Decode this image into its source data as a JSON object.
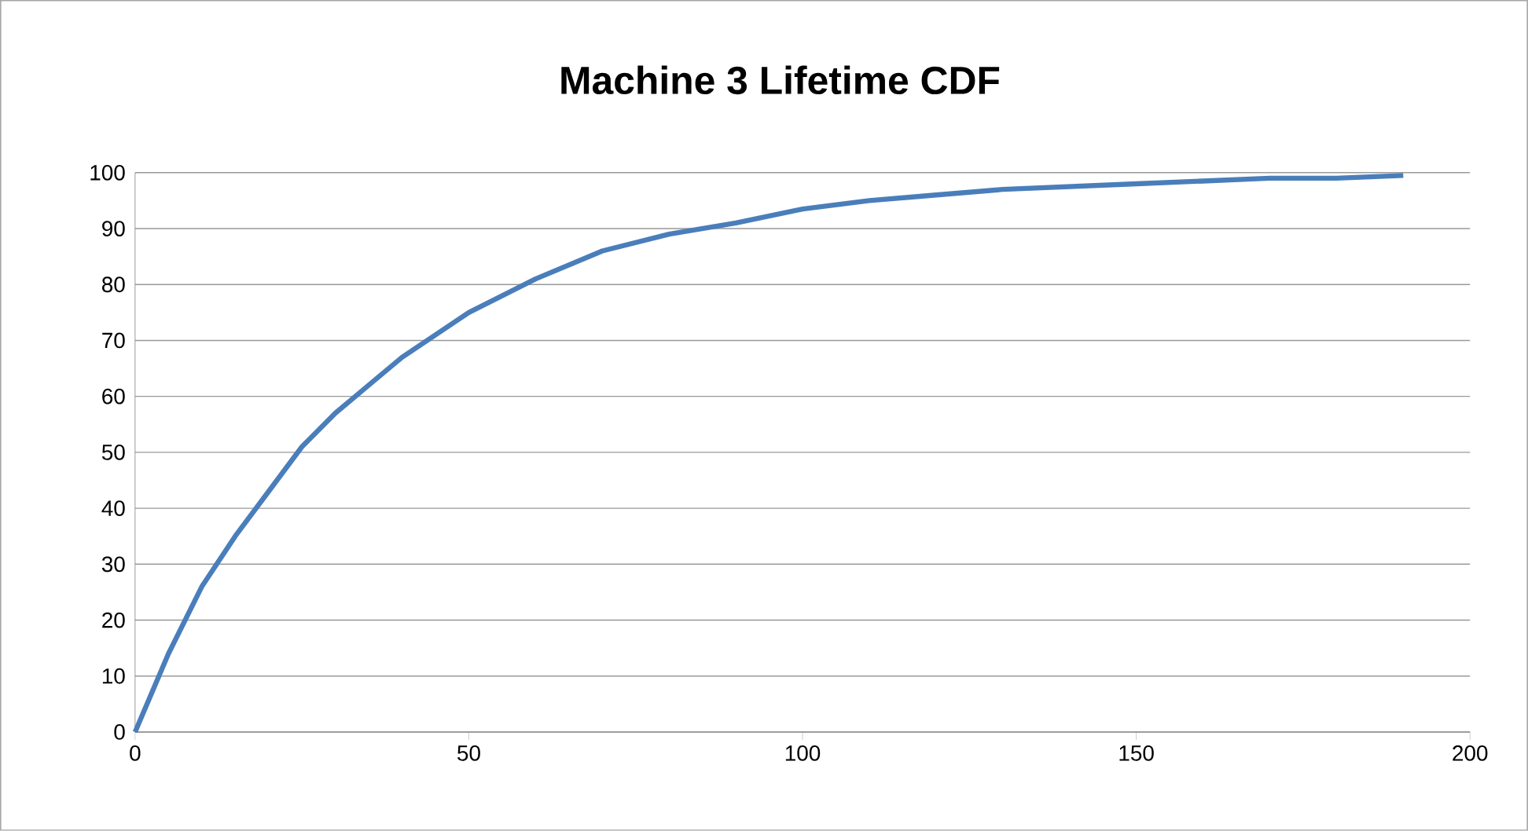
{
  "chart_data": {
    "type": "line",
    "title": "Machine 3 Lifetime CDF",
    "x": [
      0,
      5,
      10,
      15,
      20,
      25,
      30,
      35,
      40,
      45,
      50,
      60,
      70,
      80,
      90,
      100,
      110,
      120,
      130,
      140,
      150,
      160,
      170,
      180,
      190
    ],
    "series": [
      {
        "color": "#4a7ebb",
        "values": [
          0,
          14,
          26,
          35,
          43,
          51,
          57,
          62,
          67,
          71,
          75,
          81,
          86,
          89,
          91,
          93.5,
          95,
          96,
          97,
          97.5,
          98,
          98.5,
          99,
          99,
          99.5
        ]
      }
    ],
    "xlim": [
      0,
      200
    ],
    "ylim": [
      0,
      100
    ],
    "xticks": [
      0,
      50,
      100,
      150,
      200
    ],
    "yticks": [
      0,
      10,
      20,
      30,
      40,
      50,
      60,
      70,
      80,
      90,
      100
    ],
    "grid": "y"
  }
}
